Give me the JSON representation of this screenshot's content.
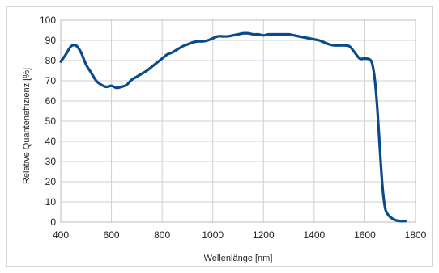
{
  "chart_data": {
    "type": "line",
    "title": "",
    "xlabel": "Wellenlänge [nm]",
    "ylabel": "Relative Quanteneffizienz [%]",
    "xlim": [
      400,
      1800
    ],
    "ylim": [
      0,
      100
    ],
    "x_ticks": [
      "400",
      "600",
      "800",
      "1000",
      "1200",
      "1400",
      "1600",
      "1800"
    ],
    "y_ticks": [
      "0",
      "10",
      "20",
      "30",
      "40",
      "50",
      "60",
      "70",
      "80",
      "90",
      "100"
    ],
    "grid": true,
    "legend": "none",
    "line_color": "#0a4a8c",
    "series": [
      {
        "x": [
          400,
          420,
          440,
          460,
          480,
          500,
          520,
          540,
          560,
          580,
          600,
          620,
          640,
          660,
          680,
          700,
          720,
          740,
          760,
          780,
          800,
          820,
          840,
          860,
          880,
          900,
          920,
          940,
          960,
          980,
          1000,
          1020,
          1040,
          1060,
          1080,
          1100,
          1120,
          1140,
          1160,
          1180,
          1200,
          1220,
          1240,
          1260,
          1280,
          1300,
          1320,
          1340,
          1360,
          1380,
          1400,
          1420,
          1440,
          1460,
          1480,
          1500,
          1520,
          1540,
          1560,
          1580,
          1600,
          1620,
          1630,
          1640,
          1650,
          1660,
          1670,
          1680,
          1690,
          1700,
          1720,
          1740,
          1760
        ],
        "y": [
          79.5,
          83,
          87,
          87.5,
          84,
          78,
          74,
          70,
          68,
          67,
          67.5,
          66.5,
          67,
          68,
          70.5,
          72,
          73.5,
          75,
          77,
          79,
          81,
          83,
          84,
          85.5,
          87,
          88,
          89,
          89.5,
          89.5,
          90,
          91,
          92,
          92,
          92,
          92.5,
          93,
          93.5,
          93.5,
          93,
          93,
          92.5,
          93,
          93,
          93,
          93,
          93,
          92.5,
          92,
          91.5,
          91,
          90.5,
          90,
          89,
          88,
          87.5,
          87.5,
          87.5,
          87,
          84,
          81,
          81,
          80.5,
          78,
          70,
          55,
          35,
          17,
          7,
          4,
          2.5,
          1,
          0.5,
          0.5
        ]
      }
    ]
  }
}
